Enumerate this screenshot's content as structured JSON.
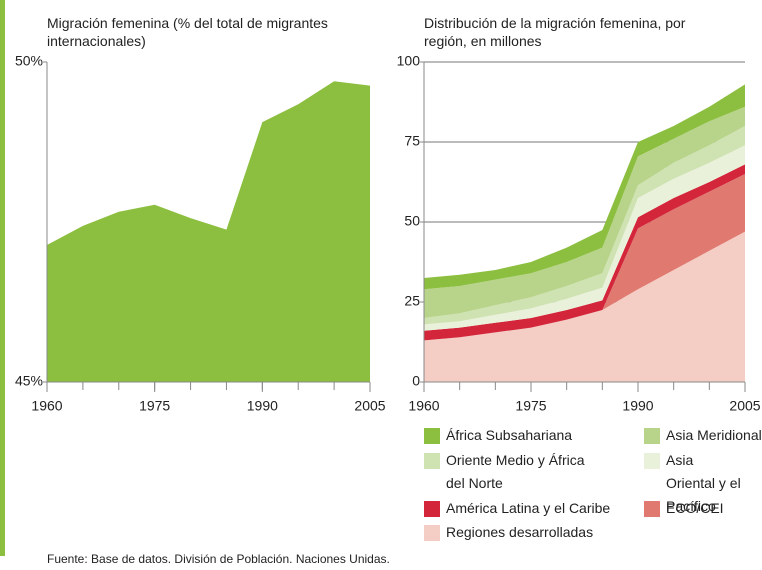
{
  "chart_data": [
    {
      "type": "area",
      "title": "Migración femenina (% del total de migrantes internacionales)",
      "x": [
        1960,
        1965,
        1970,
        1975,
        1980,
        1985,
        1990,
        1995,
        2000,
        2005
      ],
      "values": [
        47.14,
        47.44,
        47.66,
        47.77,
        47.56,
        47.38,
        49.06,
        49.34,
        49.7,
        49.63
      ],
      "color": "#8cbf3f",
      "xlim": [
        1960,
        2005
      ],
      "xticks": [
        1960,
        1975,
        1990,
        2005
      ],
      "ylim": [
        45,
        50
      ],
      "yticks": [
        {
          "value": 45,
          "label": "45%"
        },
        {
          "value": 50,
          "label": "50%"
        }
      ],
      "grid": false
    },
    {
      "type": "stacked_area",
      "title": "Distribución de la migración femenina, por región, en millones",
      "x": [
        1960,
        1965,
        1970,
        1975,
        1980,
        1985,
        1990,
        1995,
        2000,
        2005
      ],
      "series": [
        {
          "name": "Regiones desarrolladas",
          "color": "#f4cdc4",
          "values": [
            13,
            14,
            15.5,
            17,
            19.5,
            22.5,
            29,
            35,
            41,
            47
          ]
        },
        {
          "name": "ECO/CEI",
          "color": "#e07a70",
          "values": [
            0,
            0,
            0,
            0,
            0,
            0,
            19,
            19,
            18.5,
            18
          ]
        },
        {
          "name": "América Latina y el Caribe",
          "color": "#d3263b",
          "values": [
            3,
            3,
            3,
            3,
            3,
            3,
            3.5,
            3.5,
            3,
            3
          ]
        },
        {
          "name": "Asia Oriental y el Pacífico",
          "color": "#e9f1da",
          "values": [
            2,
            2,
            2.5,
            3,
            3.5,
            4,
            6,
            6,
            6,
            6
          ]
        },
        {
          "name": "Oriente Medio y África del Norte",
          "color": "#cfe2b1",
          "values": [
            2,
            2.5,
            3,
            3.5,
            4,
            4.5,
            4,
            5,
            5.5,
            6
          ]
        },
        {
          "name": "Asia Meridional",
          "color": "#b8d48a",
          "values": [
            9,
            8.5,
            8,
            7.5,
            7.5,
            8,
            9,
            7.5,
            7.5,
            6
          ]
        },
        {
          "name": "África Subsahariana",
          "color": "#8cbf3f",
          "values": [
            3.5,
            3.5,
            3,
            3.5,
            4.5,
            5.5,
            4.5,
            4,
            4.5,
            7
          ]
        }
      ],
      "xlim": [
        1960,
        2005
      ],
      "xticks": [
        1960,
        1975,
        1990,
        2005
      ],
      "ylim": [
        0,
        100
      ],
      "yticks": [
        0,
        25,
        50,
        75,
        100
      ],
      "grid": true
    }
  ],
  "source": "Fuente: Base de datos. División de Población. Naciones Unidas."
}
